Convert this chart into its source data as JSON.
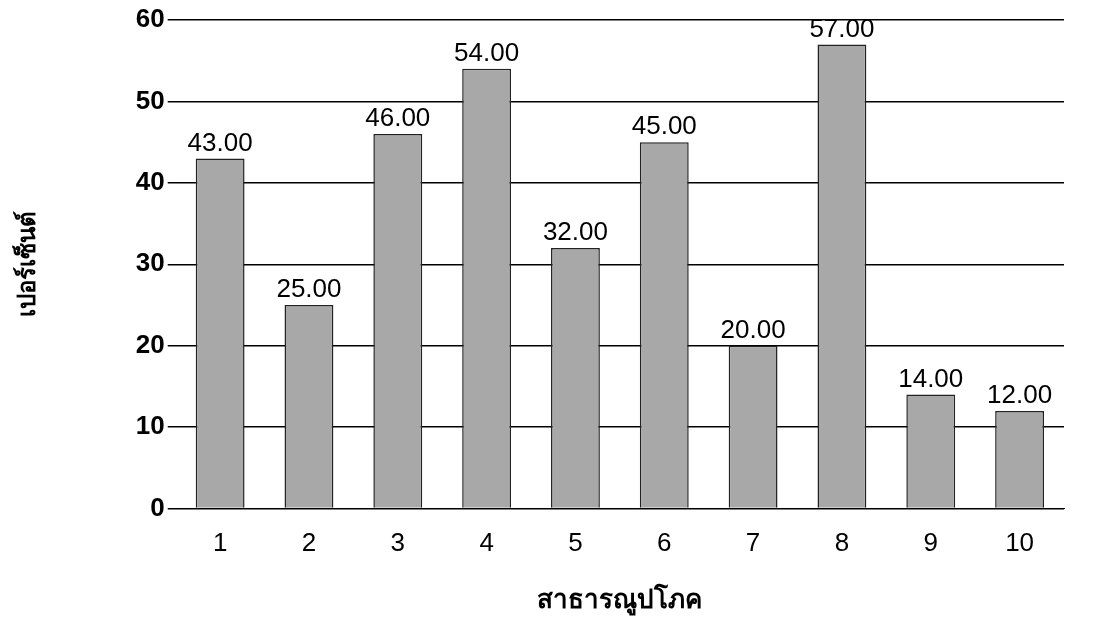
{
  "chart_data": {
    "type": "bar",
    "xlabel": "สาธารณูปโภค",
    "ylabel": "เปอร์เซ็นต์",
    "categories": [
      "1",
      "2",
      "3",
      "4",
      "5",
      "6",
      "7",
      "8",
      "9",
      "10"
    ],
    "values": [
      43,
      25,
      46,
      54,
      32,
      45,
      20,
      57,
      14,
      12
    ],
    "value_labels": [
      "43.00",
      "25.00",
      "46.00",
      "54.00",
      "32.00",
      "45.00",
      "20.00",
      "57.00",
      "14.00",
      "12.00"
    ],
    "color": "#a8a8a8",
    "ylim": [
      0,
      60
    ],
    "yticks": [
      0,
      10,
      20,
      30,
      40,
      50,
      60
    ],
    "grid": "y",
    "legend": false
  }
}
